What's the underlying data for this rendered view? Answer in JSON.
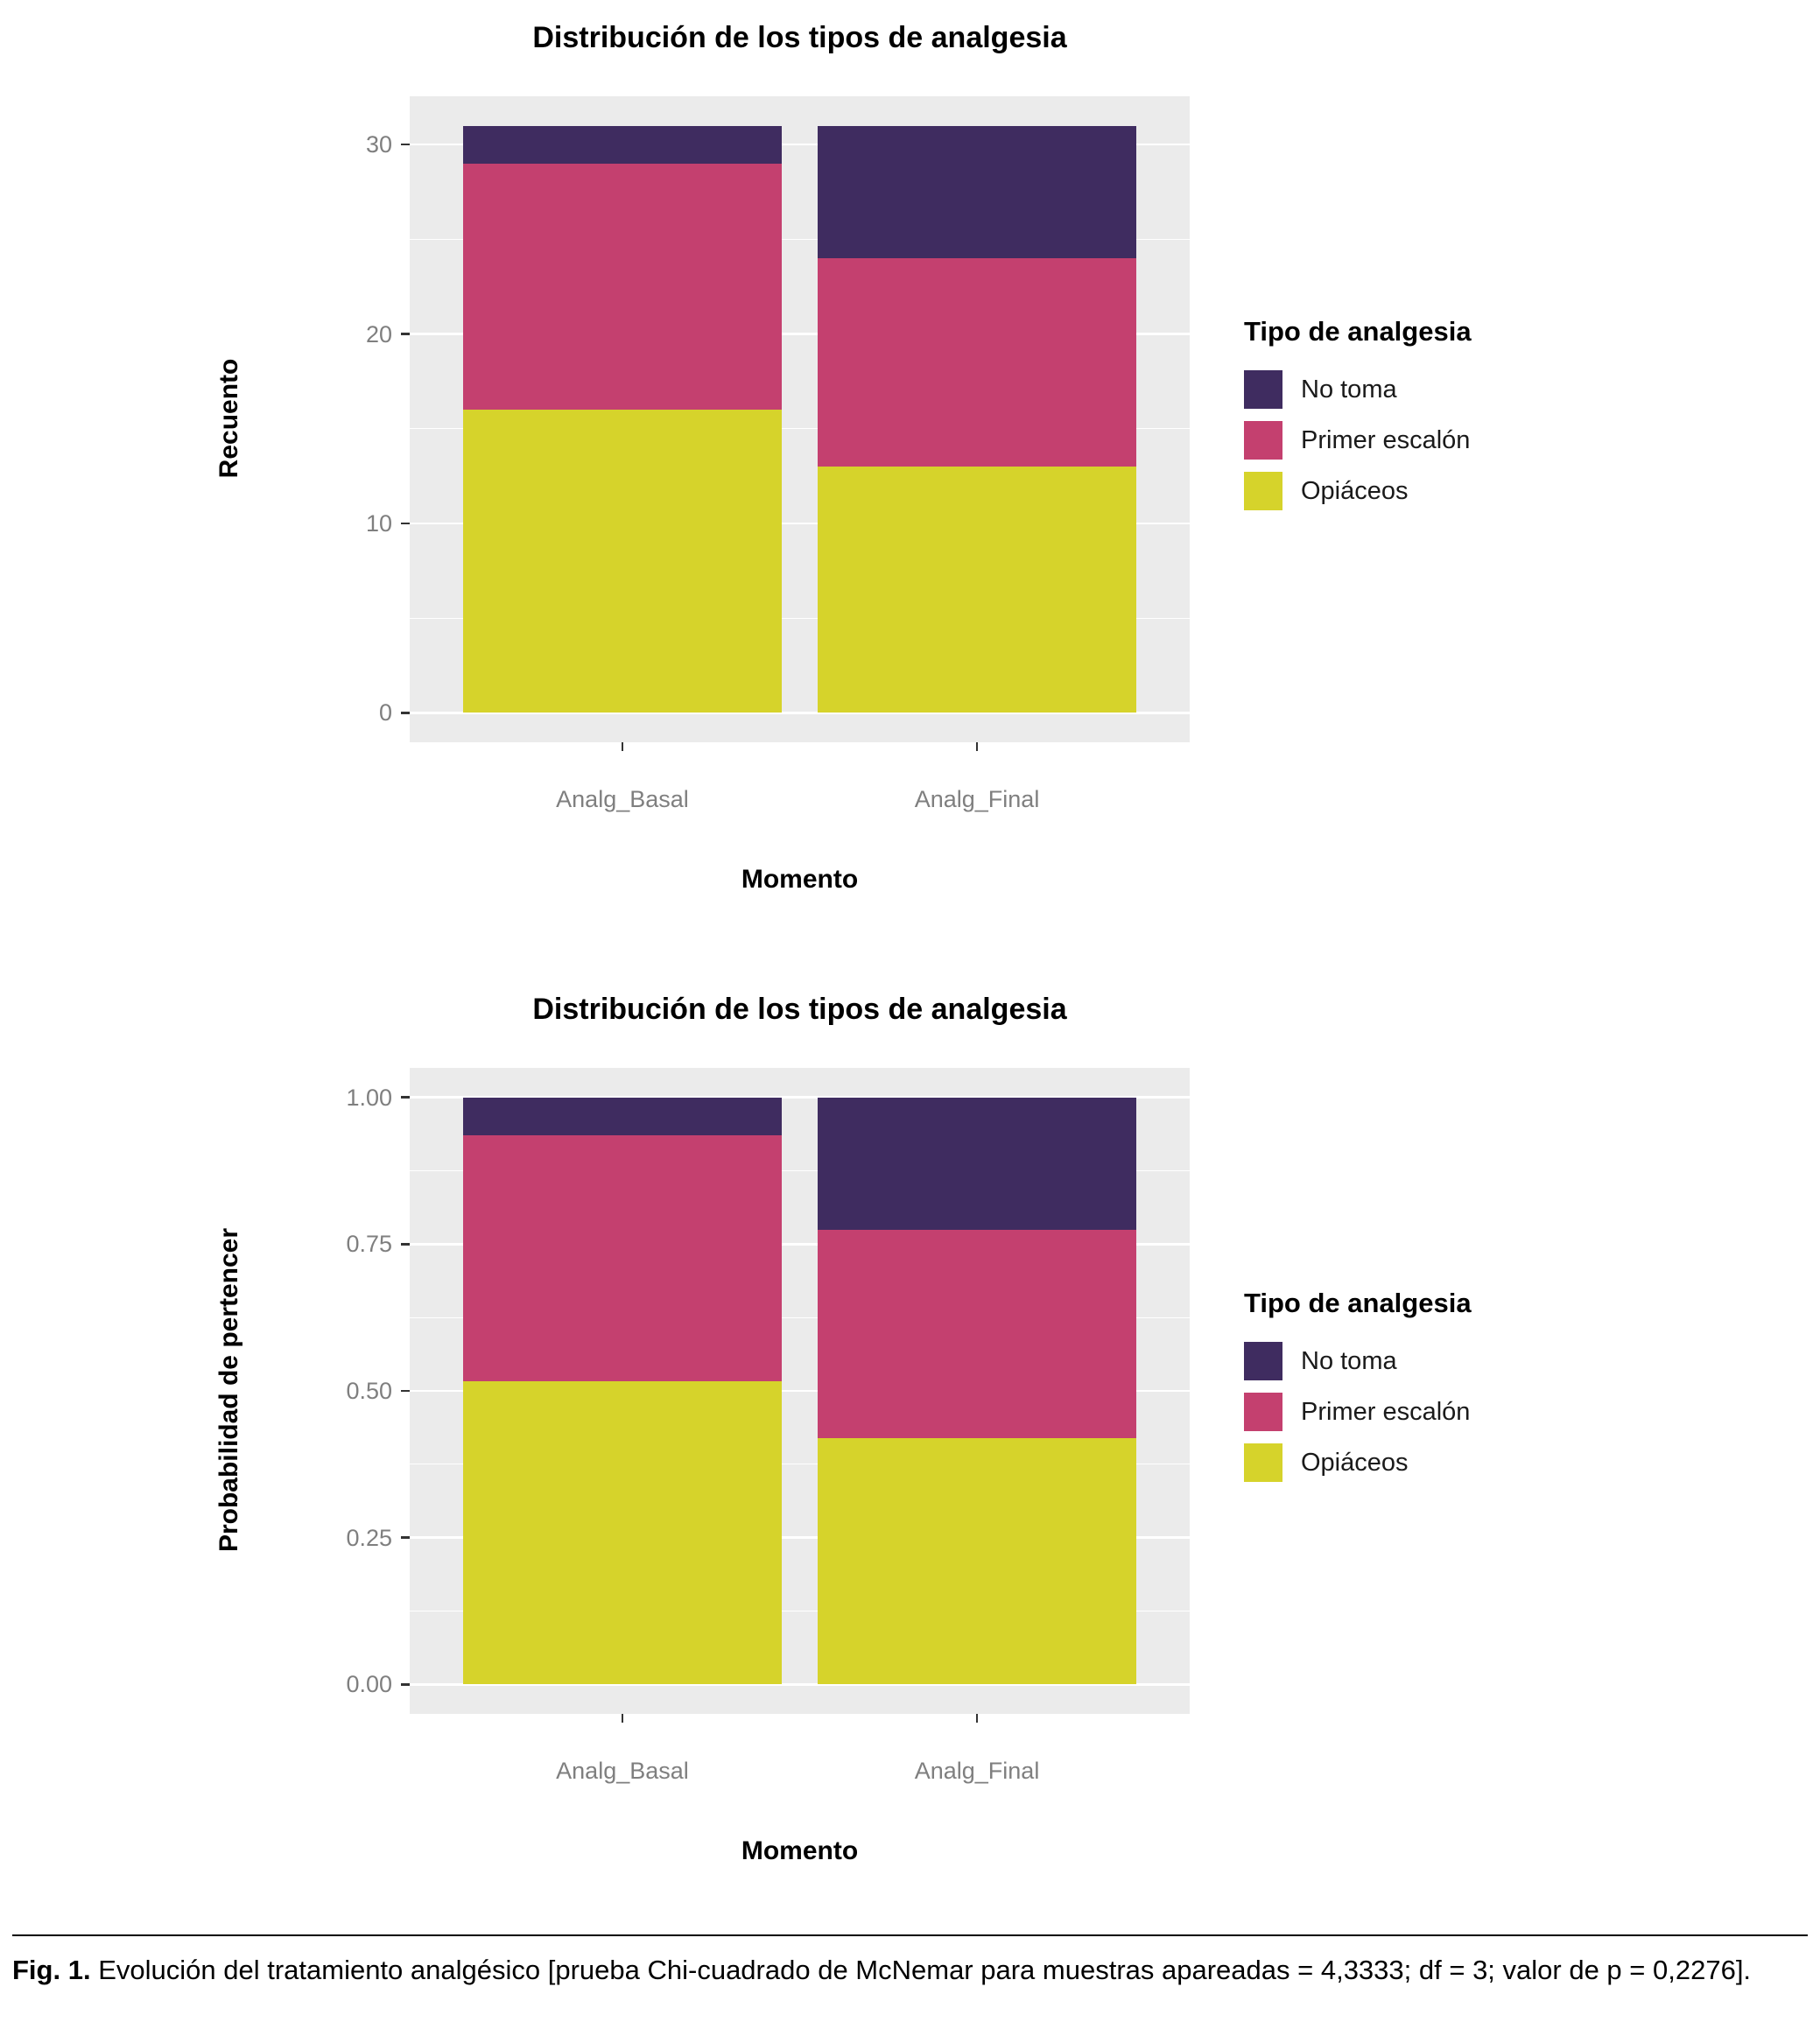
{
  "figure": {
    "caption": {
      "label": "Fig. 1.",
      "text": "Evolución del tratamiento analgésico [prueba Chi-cuadrado de McNemar para muestras apareadas = 4,3333; df = 3; valor de p = 0,2276]."
    }
  },
  "colors": {
    "panel_background": "#ebebeb",
    "gridline": "#ffffff",
    "no_toma": "#3f2c60",
    "primer_escalon": "#c4406f",
    "opiaceos": "#d6d32b",
    "tick_label": "#7f7f7f"
  },
  "chart_data": [
    {
      "type": "bar",
      "stacked": true,
      "title": "Distribución de los tipos de analgesia",
      "xlabel": "Momento",
      "ylabel": "Recuento",
      "categories": [
        "Analg_Basal",
        "Analg_Final"
      ],
      "series": [
        {
          "name": "Opiáceos",
          "color": "#d6d32b",
          "values": [
            16,
            13
          ]
        },
        {
          "name": "Primer escalón",
          "color": "#c4406f",
          "values": [
            13,
            11
          ]
        },
        {
          "name": "No toma",
          "color": "#3f2c60",
          "values": [
            2,
            7
          ]
        }
      ],
      "legend": {
        "title": "Tipo de analgesia",
        "items": [
          "No toma",
          "Primer escalón",
          "Opiáceos"
        ],
        "position": "right"
      },
      "y_ticks": [
        {
          "value": 0,
          "label": "0"
        },
        {
          "value": 10,
          "label": "10"
        },
        {
          "value": 20,
          "label": "20"
        },
        {
          "value": 30,
          "label": "30"
        }
      ],
      "y_minor": [
        5,
        15,
        25
      ],
      "y_max": 31,
      "ylim": [
        0,
        31
      ],
      "grid": true
    },
    {
      "type": "bar",
      "stacked": true,
      "title": "Distribución de los tipos de analgesia",
      "xlabel": "Momento",
      "ylabel": "Probabilidad de pertencer",
      "categories": [
        "Analg_Basal",
        "Analg_Final"
      ],
      "series": [
        {
          "name": "Opiáceos",
          "color": "#d6d32b",
          "values": [
            0.516,
            0.419
          ]
        },
        {
          "name": "Primer escalón",
          "color": "#c4406f",
          "values": [
            0.419,
            0.355
          ]
        },
        {
          "name": "No toma",
          "color": "#3f2c60",
          "values": [
            0.065,
            0.226
          ]
        }
      ],
      "legend": {
        "title": "Tipo de analgesia",
        "items": [
          "No toma",
          "Primer escalón",
          "Opiáceos"
        ],
        "position": "right"
      },
      "y_ticks": [
        {
          "value": 0.0,
          "label": "0.00"
        },
        {
          "value": 0.25,
          "label": "0.25"
        },
        {
          "value": 0.5,
          "label": "0.50"
        },
        {
          "value": 0.75,
          "label": "0.75"
        },
        {
          "value": 1.0,
          "label": "1.00"
        }
      ],
      "y_minor": [
        0.125,
        0.375,
        0.625,
        0.875
      ],
      "y_max": 1.0,
      "ylim": [
        0,
        1
      ],
      "grid": true
    }
  ]
}
